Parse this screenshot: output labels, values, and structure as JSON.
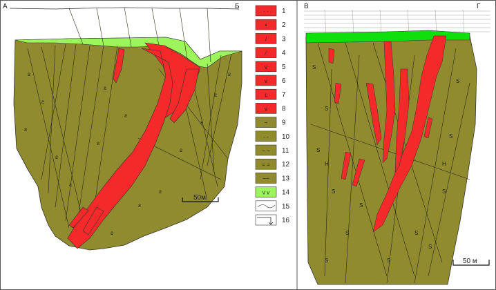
{
  "section_left": {
    "start_label": "А",
    "end_label": "Б",
    "scale_label": "50м"
  },
  "section_right": {
    "start_label": "В",
    "end_label": "Г",
    "scale_label": "50 м"
  },
  "legend": {
    "items": [
      {
        "number": "1",
        "swatch": "ore",
        "symbol": "·  ·"
      },
      {
        "number": "2",
        "swatch": "ore",
        "symbol": "•"
      },
      {
        "number": "3",
        "swatch": "ore",
        "symbol": "/"
      },
      {
        "number": "4",
        "swatch": "ore",
        "symbol": "⁄"
      },
      {
        "number": "5",
        "swatch": "ore",
        "symbol": "v"
      },
      {
        "number": "6",
        "swatch": "ore",
        "symbol": "v"
      },
      {
        "number": "7",
        "swatch": "ore",
        "symbol": "ʟ"
      },
      {
        "number": "8",
        "swatch": "ore",
        "symbol": "v"
      },
      {
        "number": "9",
        "swatch": "host",
        "symbol": "~"
      },
      {
        "number": "10",
        "swatch": "host",
        "symbol": "- -"
      },
      {
        "number": "11",
        "swatch": "host",
        "symbol": "~ ~"
      },
      {
        "number": "12",
        "swatch": "host",
        "symbol": "= ="
      },
      {
        "number": "13",
        "swatch": "host",
        "symbol": "~~"
      },
      {
        "number": "14",
        "swatch": "cover",
        "symbol": "v v"
      },
      {
        "number": "15",
        "swatch": "line",
        "symbol": ""
      },
      {
        "number": "16",
        "swatch": "well",
        "symbol": ""
      }
    ]
  },
  "colors": {
    "host_rock": "#8f8b2e",
    "ore_body": "#f42a2a",
    "cover": "#9cf55a",
    "outline": "#222222",
    "frame": "#555555"
  }
}
